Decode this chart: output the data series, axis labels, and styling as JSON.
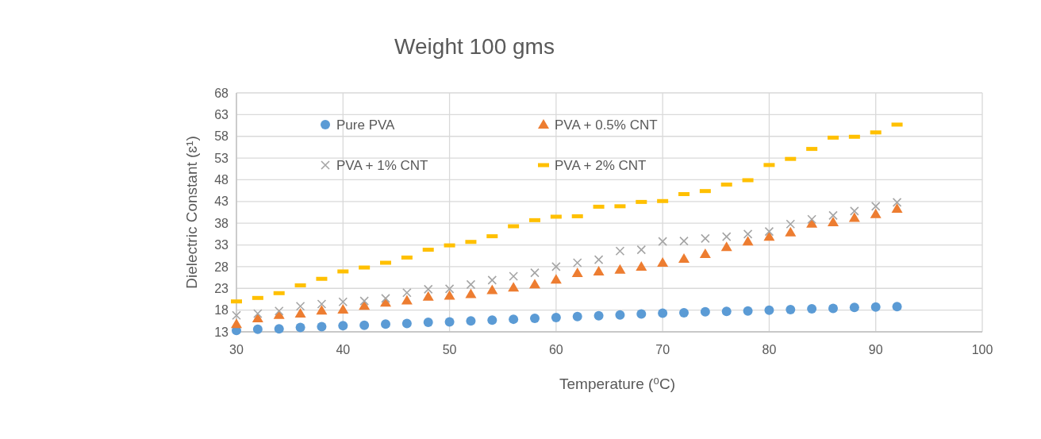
{
  "chart_data": {
    "type": "scatter",
    "title": "Weight 100 gms",
    "xlabel": "Temperature (⁰C)",
    "ylabel": "Dielectric Constant (ɛ¹)",
    "x": [
      30,
      32,
      34,
      36,
      38,
      40,
      42,
      44,
      46,
      48,
      50,
      52,
      54,
      56,
      58,
      60,
      62,
      64,
      66,
      68,
      70,
      72,
      74,
      76,
      78,
      80,
      82,
      84,
      86,
      88,
      90,
      92
    ],
    "series": [
      {
        "name": "Pure PVA",
        "color": "#5b9bd5",
        "marker": "circle",
        "values": [
          13.3,
          13.6,
          13.7,
          14.0,
          14.2,
          14.4,
          14.5,
          14.8,
          14.9,
          15.2,
          15.3,
          15.5,
          15.7,
          15.9,
          16.1,
          16.3,
          16.5,
          16.7,
          16.9,
          17.1,
          17.3,
          17.4,
          17.6,
          17.7,
          17.8,
          18.0,
          18.1,
          18.3,
          18.4,
          18.6,
          18.7,
          18.8
        ]
      },
      {
        "name": "PVA + 0.5% CNT",
        "color": "#ed7d31",
        "marker": "triangle",
        "values": [
          14.8,
          16.1,
          16.9,
          17.2,
          17.9,
          18.1,
          19.0,
          19.7,
          20.2,
          21.1,
          21.3,
          21.7,
          22.6,
          23.2,
          23.9,
          25.0,
          26.5,
          26.9,
          27.3,
          28.0,
          28.9,
          29.8,
          30.9,
          32.5,
          33.8,
          34.9,
          35.9,
          37.9,
          38.2,
          39.2,
          40.1,
          41.3
        ]
      },
      {
        "name": "PVA + 1% CNT",
        "color": "#a5a5a5",
        "marker": "cross",
        "values": [
          16.8,
          17.2,
          17.8,
          18.9,
          19.4,
          19.9,
          20.1,
          20.7,
          22.0,
          22.8,
          22.9,
          23.9,
          24.9,
          25.8,
          26.6,
          28.0,
          28.9,
          29.6,
          31.6,
          31.9,
          33.8,
          33.9,
          34.5,
          34.9,
          35.5,
          36.1,
          37.8,
          38.9,
          39.8,
          40.8,
          41.9,
          42.8
        ]
      },
      {
        "name": "PVA + 2% CNT",
        "color": "#ffc000",
        "values": [
          20.0,
          20.8,
          21.9,
          23.7,
          25.2,
          26.9,
          27.8,
          28.9,
          30.1,
          31.9,
          32.9,
          33.7,
          35.0,
          37.3,
          38.7,
          39.5,
          39.6,
          41.8,
          41.9,
          42.9,
          43.1,
          44.7,
          45.4,
          46.9,
          47.9,
          51.4,
          52.8,
          55.1,
          57.7,
          57.9,
          58.9,
          60.7
        ]
      }
    ],
    "xlim": [
      30,
      100
    ],
    "xticks": [
      30,
      40,
      50,
      60,
      70,
      80,
      90,
      100
    ],
    "ylim": [
      13,
      68
    ],
    "yticks": [
      13,
      18,
      23,
      28,
      33,
      38,
      43,
      48,
      53,
      58,
      63,
      68
    ],
    "grid": true,
    "legend": "top left"
  }
}
